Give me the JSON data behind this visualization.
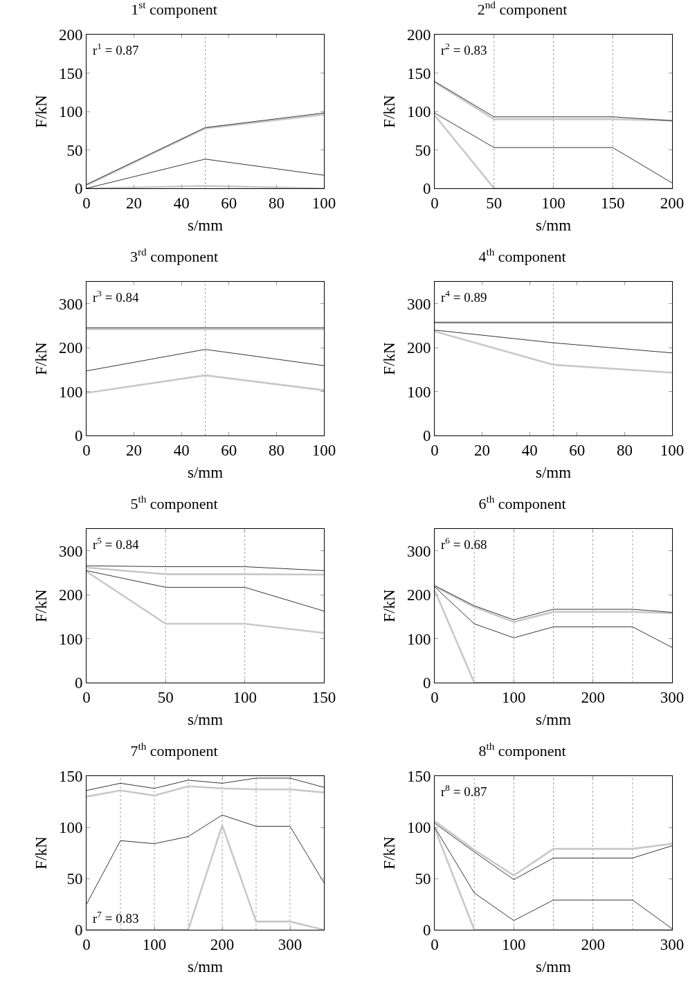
{
  "chart_data": [
    {
      "type": "line",
      "title": "1$^{st}$ component",
      "xlabel": "s/mm",
      "ylabel": "F/kN",
      "annotations": [
        "r$^{1}$ = 0.87"
      ],
      "x": [
        0,
        50,
        100
      ],
      "xlim": [
        0,
        100
      ],
      "xticks": [
        0,
        20,
        40,
        60,
        80,
        100
      ],
      "ylim": [
        0,
        200
      ],
      "yticks": [
        0,
        50,
        100,
        150,
        200
      ],
      "ref_lines": [
        {
          "axis": "x",
          "value": 50,
          "color": "#a0a0a0",
          "line_style": "dotted"
        }
      ],
      "series": [
        {
          "color": "#000000",
          "values": [
            5,
            79,
            98
          ]
        },
        {
          "color": "#c8c8c8",
          "values": [
            4,
            78,
            96
          ]
        },
        {
          "color": "#000000",
          "values": [
            0,
            38,
            17
          ]
        },
        {
          "color": "#c8c8c8",
          "values": [
            0,
            3,
            0
          ]
        }
      ]
    },
    {
      "type": "line",
      "title": "2$^{nd}$ component",
      "xlabel": "s/mm",
      "ylabel": "F/kN",
      "annotations": [
        "r$^{2}$ = 0.83"
      ],
      "x": [
        0,
        50,
        100,
        150,
        200
      ],
      "xlim": [
        0,
        200
      ],
      "xticks": [
        0,
        50,
        100,
        150,
        200
      ],
      "ylim": [
        0,
        200
      ],
      "yticks": [
        0,
        50,
        100,
        150,
        200
      ],
      "ref_lines": [
        {
          "axis": "x",
          "value": 50,
          "color": "#a0a0a0",
          "line_style": "dotted"
        },
        {
          "axis": "x",
          "value": 100,
          "color": "#a0a0a0",
          "line_style": "dotted"
        },
        {
          "axis": "x",
          "value": 150,
          "color": "#a0a0a0",
          "line_style": "dotted"
        }
      ],
      "series": [
        {
          "color": "#000000",
          "values": [
            139,
            93,
            93,
            93,
            88
          ]
        },
        {
          "color": "#c8c8c8",
          "values": [
            138,
            90,
            90,
            90,
            88
          ]
        },
        {
          "color": "#000000",
          "values": [
            98,
            53,
            53,
            53,
            7
          ]
        },
        {
          "color": "#c8c8c8",
          "values": [
            95,
            0,
            0,
            0,
            0
          ]
        }
      ]
    },
    {
      "type": "line",
      "title": "3$^{rd}$ component",
      "xlabel": "s/mm",
      "ylabel": "F/kN",
      "annotations": [
        "r$^{3}$ = 0.84"
      ],
      "x": [
        0,
        50,
        100
      ],
      "xlim": [
        0,
        100
      ],
      "xticks": [
        0,
        20,
        40,
        60,
        80,
        100
      ],
      "ylim": [
        0,
        350
      ],
      "yticks": [
        0,
        100,
        200,
        300
      ],
      "ref_lines": [
        {
          "axis": "x",
          "value": 50,
          "color": "#a0a0a0",
          "line_style": "dotted"
        }
      ],
      "series": [
        {
          "color": "#000000",
          "values": [
            245,
            245,
            245
          ]
        },
        {
          "color": "#c8c8c8",
          "values": [
            242,
            242,
            242
          ]
        },
        {
          "color": "#000000",
          "values": [
            147,
            196,
            159
          ]
        },
        {
          "color": "#c8c8c8",
          "values": [
            97,
            137,
            103
          ]
        }
      ]
    },
    {
      "type": "line",
      "title": "4$^{th}$ component",
      "xlabel": "s/mm",
      "ylabel": "F/kN",
      "annotations": [
        "r$^{4}$ = 0.89"
      ],
      "x": [
        0,
        50,
        100
      ],
      "xlim": [
        0,
        100
      ],
      "xticks": [
        0,
        20,
        40,
        60,
        80,
        100
      ],
      "ylim": [
        0,
        350
      ],
      "yticks": [
        0,
        100,
        200,
        300
      ],
      "ref_lines": [
        {
          "axis": "x",
          "value": 50,
          "color": "#a0a0a0",
          "line_style": "dotted"
        }
      ],
      "series": [
        {
          "color": "#000000",
          "values": [
            258,
            258,
            258
          ]
        },
        {
          "color": "#c8c8c8",
          "values": [
            256,
            256,
            256
          ]
        },
        {
          "color": "#000000",
          "values": [
            240,
            211,
            188
          ]
        },
        {
          "color": "#c8c8c8",
          "values": [
            237,
            161,
            143
          ]
        }
      ]
    },
    {
      "type": "line",
      "title": "5$^{th}$ component",
      "xlabel": "s/mm",
      "ylabel": "F/kN",
      "annotations": [
        "r$^{5}$ = 0.84"
      ],
      "x": [
        0,
        50,
        100,
        150
      ],
      "xlim": [
        0,
        150
      ],
      "xticks": [
        0,
        50,
        100,
        150
      ],
      "ylim": [
        0,
        350
      ],
      "yticks": [
        0,
        100,
        200,
        300
      ],
      "ref_lines": [
        {
          "axis": "x",
          "value": 50,
          "color": "#a0a0a0",
          "line_style": "dotted"
        },
        {
          "axis": "x",
          "value": 100,
          "color": "#a0a0a0",
          "line_style": "dotted"
        }
      ],
      "series": [
        {
          "color": "#000000",
          "values": [
            266,
            264,
            264,
            255
          ]
        },
        {
          "color": "#c8c8c8",
          "values": [
            262,
            247,
            247,
            246
          ]
        },
        {
          "color": "#000000",
          "values": [
            255,
            217,
            217,
            163
          ]
        },
        {
          "color": "#c8c8c8",
          "values": [
            253,
            134,
            134,
            113
          ]
        }
      ]
    },
    {
      "type": "line",
      "title": "6$^{th}$ component",
      "xlabel": "s/mm",
      "ylabel": "F/kN",
      "annotations": [
        "r$^{6}$ = 0.68"
      ],
      "x": [
        0,
        50,
        100,
        150,
        200,
        250,
        300
      ],
      "xlim": [
        0,
        300
      ],
      "xticks": [
        0,
        100,
        200,
        300
      ],
      "ylim": [
        0,
        350
      ],
      "yticks": [
        0,
        100,
        200,
        300
      ],
      "ref_lines": [
        {
          "axis": "x",
          "value": 50,
          "color": "#a0a0a0",
          "line_style": "dotted"
        },
        {
          "axis": "x",
          "value": 100,
          "color": "#a0a0a0",
          "line_style": "dotted"
        },
        {
          "axis": "x",
          "value": 150,
          "color": "#a0a0a0",
          "line_style": "dotted"
        },
        {
          "axis": "x",
          "value": 200,
          "color": "#a0a0a0",
          "line_style": "dotted"
        },
        {
          "axis": "x",
          "value": 250,
          "color": "#a0a0a0",
          "line_style": "dotted"
        }
      ],
      "series": [
        {
          "color": "#000000",
          "values": [
            221,
            175,
            143,
            167,
            167,
            167,
            160
          ]
        },
        {
          "color": "#c8c8c8",
          "values": [
            219,
            172,
            138,
            161,
            161,
            161,
            158
          ]
        },
        {
          "color": "#000000",
          "values": [
            218,
            134,
            102,
            127,
            127,
            127,
            80
          ]
        },
        {
          "color": "#c8c8c8",
          "values": [
            210,
            0,
            0,
            0,
            0,
            0,
            0
          ]
        }
      ]
    },
    {
      "type": "line",
      "title": "7$^{th}$ component",
      "xlabel": "s/mm",
      "ylabel": "F/kN",
      "annotations": [
        "r$^{7}$ = 0.83"
      ],
      "x": [
        0,
        50,
        100,
        150,
        200,
        250,
        300,
        350
      ],
      "xlim": [
        0,
        350
      ],
      "xticks": [
        0,
        100,
        200,
        300
      ],
      "ylim": [
        0,
        150
      ],
      "yticks": [
        0,
        50,
        100,
        150
      ],
      "ref_lines": [
        {
          "axis": "x",
          "value": 50,
          "color": "#a0a0a0",
          "line_style": "dotted"
        },
        {
          "axis": "x",
          "value": 100,
          "color": "#a0a0a0",
          "line_style": "dotted"
        },
        {
          "axis": "x",
          "value": 150,
          "color": "#a0a0a0",
          "line_style": "dotted"
        },
        {
          "axis": "x",
          "value": 200,
          "color": "#a0a0a0",
          "line_style": "dotted"
        },
        {
          "axis": "x",
          "value": 250,
          "color": "#a0a0a0",
          "line_style": "dotted"
        },
        {
          "axis": "x",
          "value": 300,
          "color": "#a0a0a0",
          "line_style": "dotted"
        }
      ],
      "series": [
        {
          "color": "#000000",
          "values": [
            136,
            143,
            138,
            146,
            143,
            148,
            148,
            139
          ]
        },
        {
          "color": "#c8c8c8",
          "values": [
            130,
            136,
            131,
            140,
            138,
            137,
            137,
            134
          ]
        },
        {
          "color": "#000000",
          "values": [
            25,
            87,
            84,
            91,
            112,
            101,
            101,
            46
          ]
        },
        {
          "color": "#c8c8c8",
          "values": [
            0,
            0,
            0,
            0,
            102,
            8,
            8,
            0
          ]
        }
      ]
    },
    {
      "type": "line",
      "title": "8$^{th}$ component",
      "xlabel": "s/mm",
      "ylabel": "F/kN",
      "annotations": [
        "r$^{8}$ = 0.87"
      ],
      "x": [
        0,
        50,
        100,
        150,
        200,
        250,
        300
      ],
      "xlim": [
        0,
        300
      ],
      "xticks": [
        0,
        100,
        200,
        300
      ],
      "ylim": [
        0,
        150
      ],
      "yticks": [
        0,
        50,
        100,
        150
      ],
      "ref_lines": [
        {
          "axis": "x",
          "value": 50,
          "color": "#a0a0a0",
          "line_style": "dotted"
        },
        {
          "axis": "x",
          "value": 100,
          "color": "#a0a0a0",
          "line_style": "dotted"
        },
        {
          "axis": "x",
          "value": 150,
          "color": "#a0a0a0",
          "line_style": "dotted"
        },
        {
          "axis": "x",
          "value": 200,
          "color": "#a0a0a0",
          "line_style": "dotted"
        },
        {
          "axis": "x",
          "value": 250,
          "color": "#a0a0a0",
          "line_style": "dotted"
        }
      ],
      "series": [
        {
          "color": "#c8c8c8",
          "values": [
            106,
            78,
            53,
            79,
            79,
            79,
            84
          ]
        },
        {
          "color": "#000000",
          "values": [
            104,
            76,
            49,
            70,
            70,
            70,
            82
          ]
        },
        {
          "color": "#000000",
          "values": [
            100,
            36,
            9,
            29,
            29,
            29,
            1
          ]
        },
        {
          "color": "#c8c8c8",
          "values": [
            99,
            0,
            0,
            0,
            0,
            0,
            0
          ]
        }
      ]
    }
  ]
}
